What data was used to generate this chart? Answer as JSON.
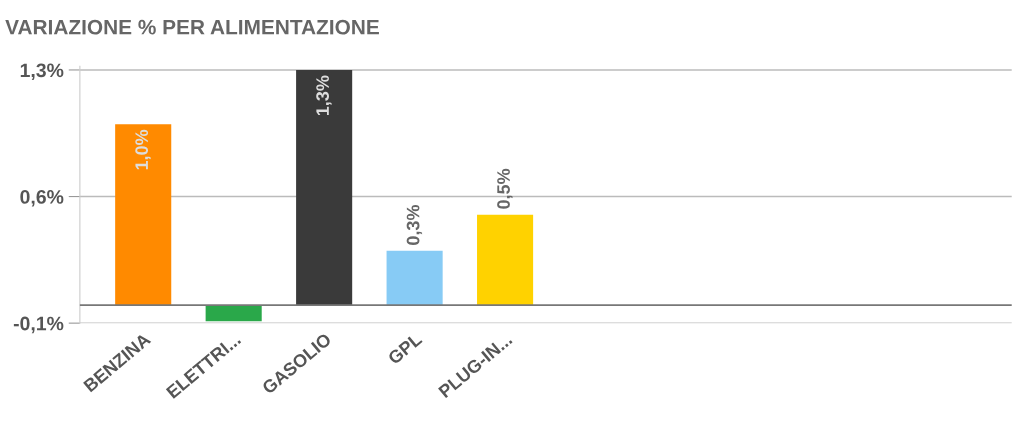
{
  "chart_data": {
    "type": "bar",
    "title": "VARIAZIONE % PER ALIMENTAZIONE",
    "categories": [
      "BENZINA",
      "ELETTRI...",
      "GASOLIO",
      "GPL",
      "PLUG-IN..."
    ],
    "values": [
      1.0,
      -0.09,
      1.3,
      0.3,
      0.5
    ],
    "colors": [
      "#ff8a00",
      "#2aa84a",
      "#3a3a3a",
      "#87cbf5",
      "#ffd200"
    ],
    "value_labels": [
      "1,0%",
      null,
      "1,3%",
      "0,3%",
      "0,5%"
    ],
    "ylim": [
      -0.1,
      1.32
    ],
    "yticks": [
      {
        "value": -0.1,
        "label": "-0,1%"
      },
      {
        "value": 0.6,
        "label": "0,6%"
      },
      {
        "value": 1.3,
        "label": "1,3%"
      }
    ],
    "grid": "y",
    "legend": false
  }
}
